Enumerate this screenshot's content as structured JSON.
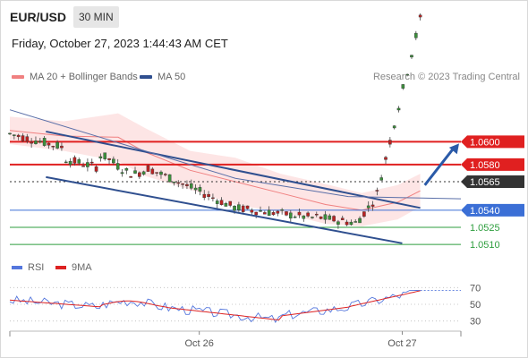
{
  "header": {
    "symbol": "EUR/USD",
    "timeframe": "30 MIN",
    "datetime": "Friday, October 27, 2023 1:44:43 AM CET"
  },
  "legend": {
    "bollinger": {
      "label": "MA 20 + Bollinger Bands",
      "color": "#f08080"
    },
    "ma50": {
      "label": "MA 50",
      "color": "#2f4f8f"
    },
    "copyright": "Research © 2023 Trading Central"
  },
  "rsi_legend": {
    "rsi": {
      "label": "RSI",
      "color": "#5577dd"
    },
    "ma9": {
      "label": "9MA",
      "color": "#dd2222"
    }
  },
  "chart_data": [
    {
      "type": "candlestick",
      "ylim": [
        1.0503,
        1.0638
      ],
      "levels": [
        {
          "value": "1.0600",
          "kind": "resistance",
          "color": "#e02020"
        },
        {
          "value": "1.0580",
          "kind": "resistance",
          "color": "#e02020"
        },
        {
          "value": "1.0565",
          "kind": "current",
          "color": "#333333"
        },
        {
          "value": "1.0540",
          "kind": "support",
          "color": "#3b6fd6"
        },
        {
          "value": "1.0525",
          "kind": "target",
          "color": "#2e9e3e"
        },
        {
          "value": "1.0510",
          "kind": "target",
          "color": "#2e9e3e"
        }
      ],
      "channel_upper": [
        [
          0.08,
          1.0609
        ],
        [
          0.91,
          1.0542
        ]
      ],
      "channel_lower": [
        [
          0.08,
          1.0569
        ],
        [
          0.87,
          1.0511
        ]
      ],
      "ma50_line": [
        [
          0.0,
          1.0628
        ],
        [
          0.25,
          1.0598
        ],
        [
          0.5,
          1.0568
        ],
        [
          0.75,
          1.0552
        ],
        [
          1.0,
          1.055
        ]
      ],
      "forecast_arrow": [
        [
          0.92,
          1.0562
        ],
        [
          1.0,
          1.06
        ]
      ],
      "x_ticks": [
        "Oct 26",
        "Oct 27"
      ]
    },
    {
      "type": "line",
      "title": "RSI",
      "ylim": [
        20,
        80
      ],
      "y_ticks": [
        "70",
        "50",
        "30"
      ]
    }
  ]
}
